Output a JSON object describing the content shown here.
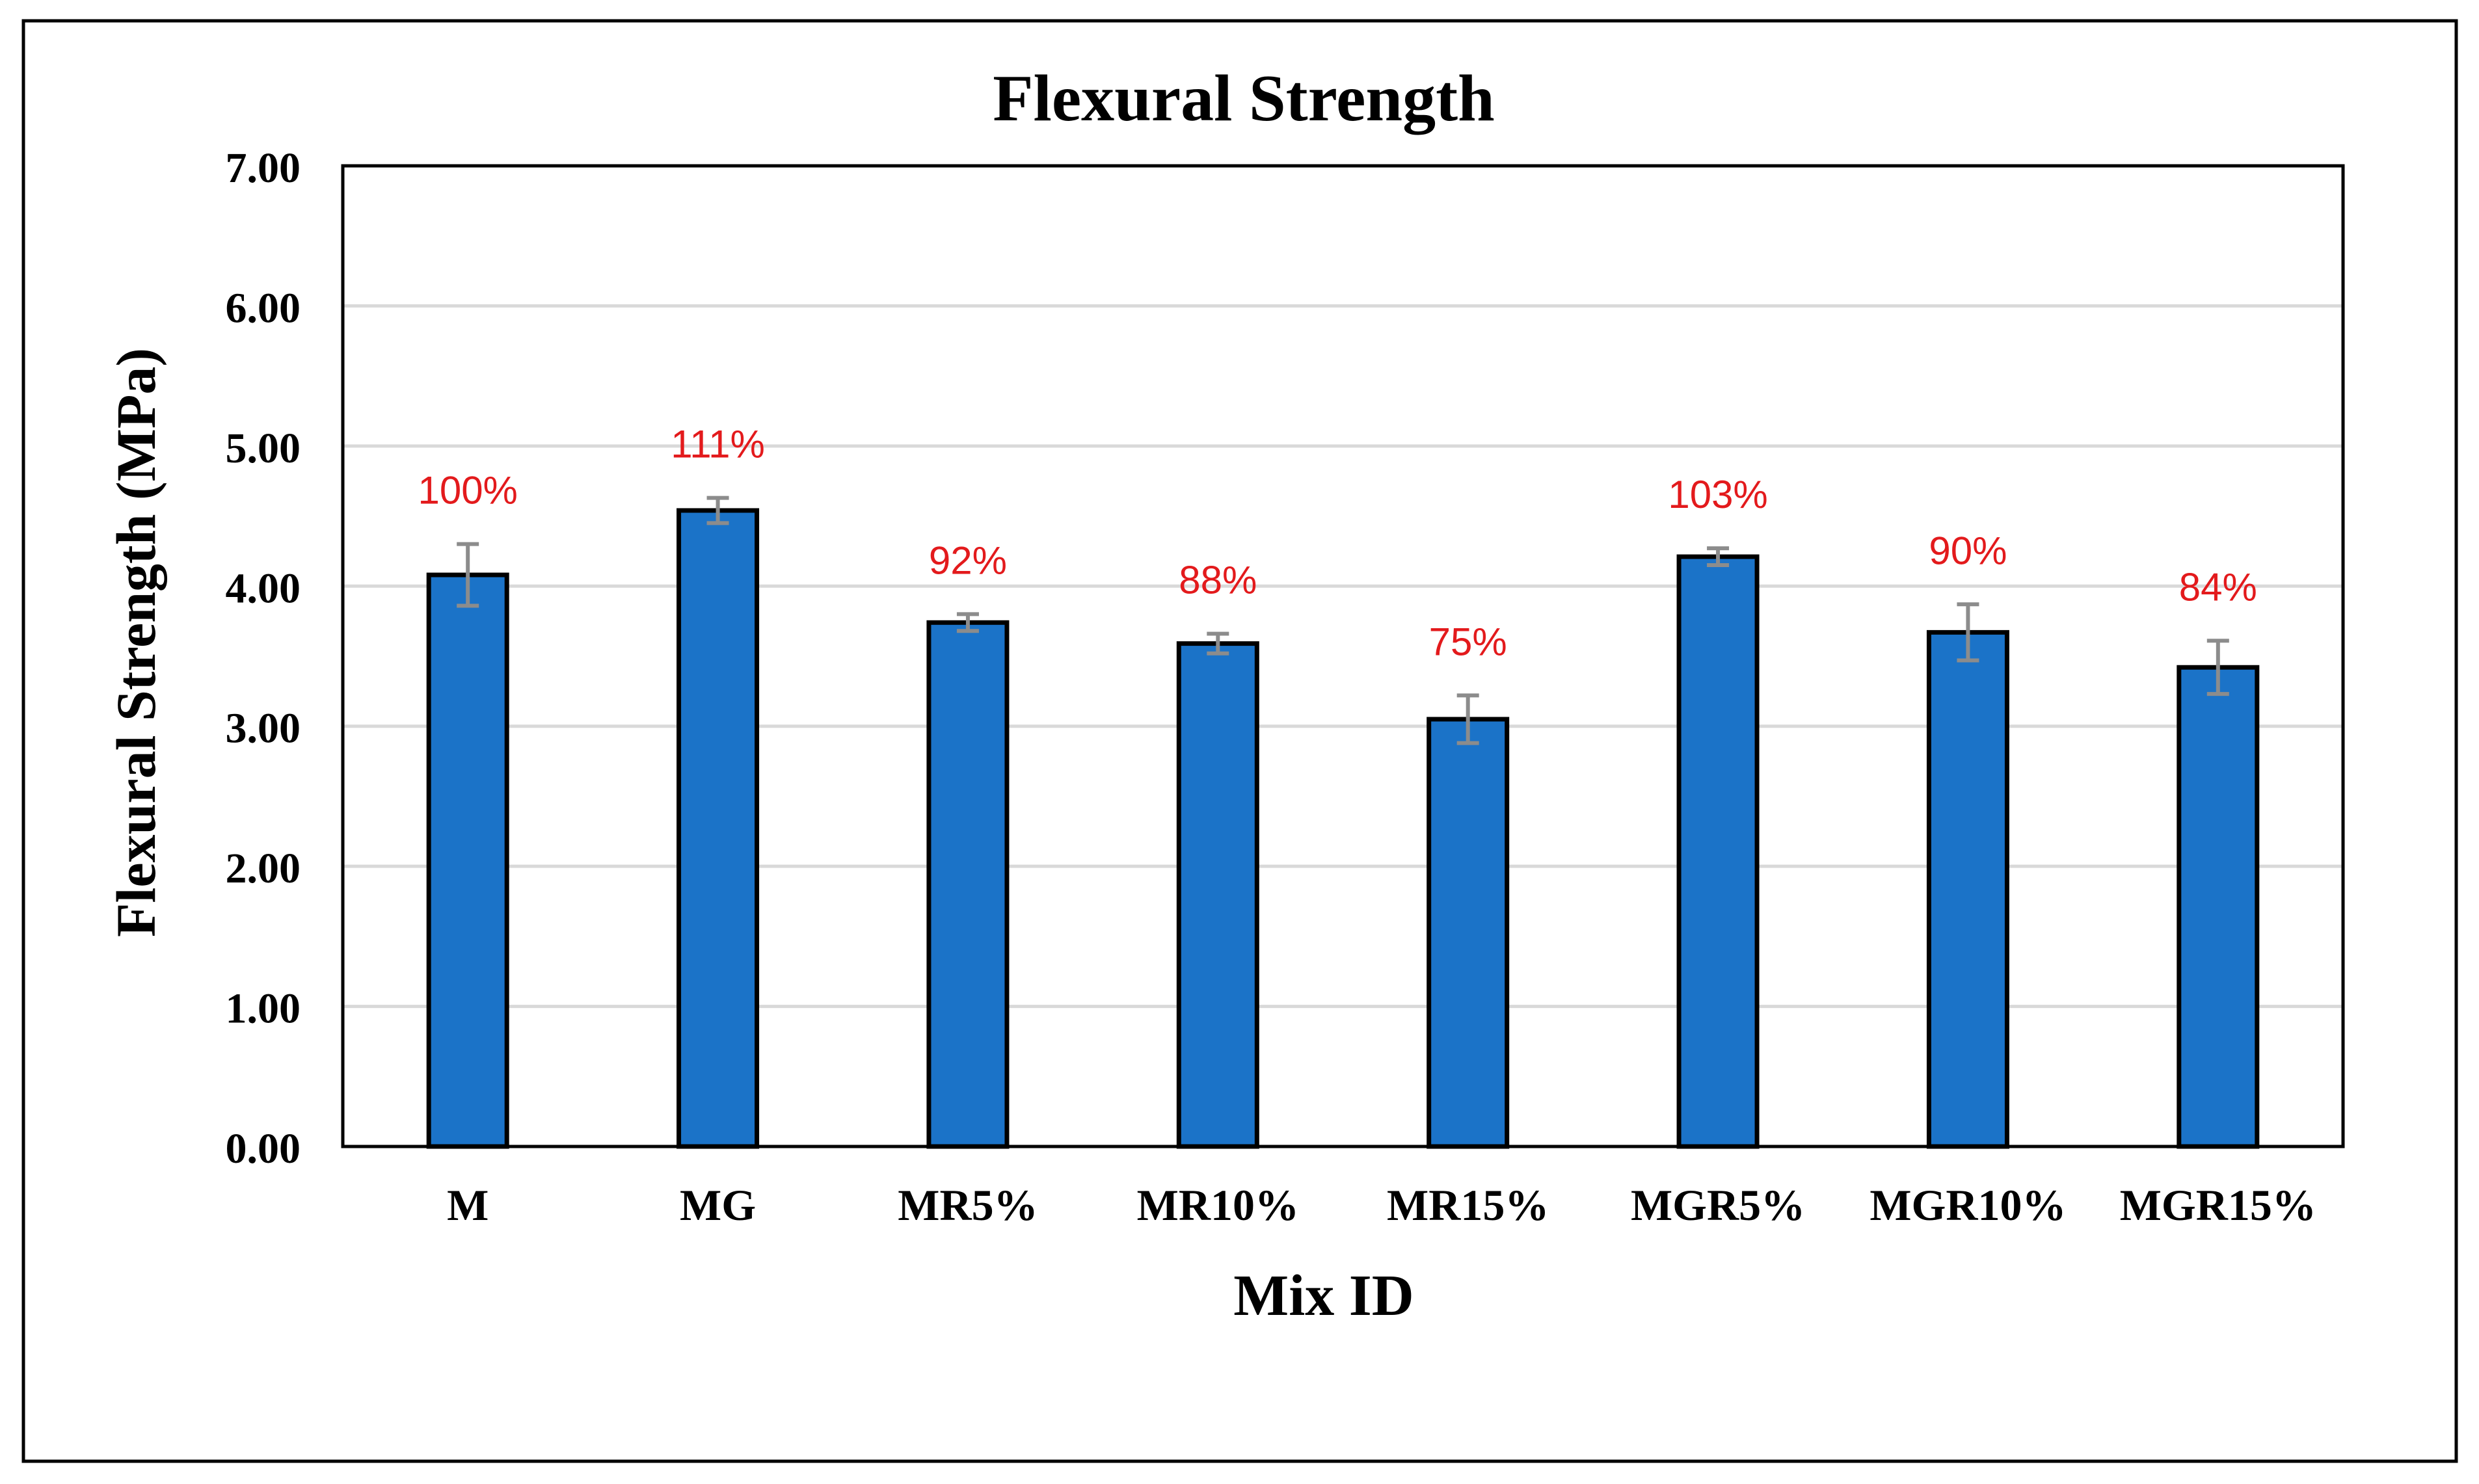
{
  "chart_data": {
    "type": "bar",
    "title": "Flexural Strength",
    "xlabel": "Mix ID",
    "ylabel": "Flexural Strength (MPa)",
    "ylim": [
      0,
      7
    ],
    "ytick_step": 1,
    "ytick_labels": [
      "0.00",
      "1.00",
      "2.00",
      "3.00",
      "4.00",
      "5.00",
      "6.00",
      "7.00"
    ],
    "grid": true,
    "categories": [
      "M",
      "MG",
      "MR5%",
      "MR10%",
      "MR15%",
      "MGR5%",
      "MGR10%",
      "MGR15%"
    ],
    "values": [
      4.08,
      4.54,
      3.74,
      3.59,
      3.05,
      4.21,
      3.67,
      3.42
    ],
    "error_bars": [
      0.22,
      0.09,
      0.06,
      0.07,
      0.17,
      0.06,
      0.2,
      0.19
    ],
    "data_labels": [
      "100%",
      "111%",
      "92%",
      "88%",
      "75%",
      "103%",
      "90%",
      "84%"
    ],
    "colors": {
      "bar": "#1b73c8",
      "bar_edge": "#000000",
      "error_bar": "#8c8c8c",
      "data_label": "#e31a1c",
      "grid": "#d9d9d9",
      "axis": "#000000"
    }
  }
}
